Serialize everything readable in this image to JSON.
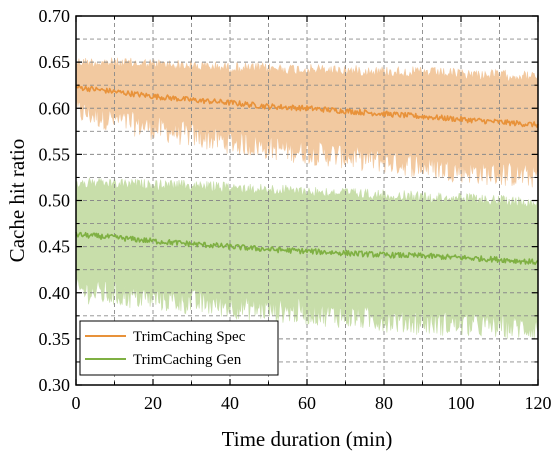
{
  "chart_data": {
    "type": "line",
    "title": "",
    "xlabel": "Time duration (min)",
    "ylabel": "Cache hit ratio",
    "xlim": [
      0,
      120
    ],
    "ylim": [
      0.3,
      0.7
    ],
    "x_ticks": [
      0,
      20,
      40,
      60,
      80,
      100,
      120
    ],
    "x_tick_labels": [
      "0",
      "20",
      "40",
      "60",
      "80",
      "100",
      "120"
    ],
    "y_ticks": [
      0.3,
      0.35,
      0.4,
      0.45,
      0.5,
      0.55,
      0.6,
      0.65,
      0.7
    ],
    "y_tick_labels": [
      "0.30",
      "0.35",
      "0.40",
      "0.45",
      "0.50",
      "0.55",
      "0.60",
      "0.65",
      "0.70"
    ],
    "grid": true,
    "legend_position": "bottom-left",
    "x": [
      0,
      10,
      20,
      30,
      40,
      50,
      60,
      70,
      80,
      90,
      100,
      110,
      120
    ],
    "series": [
      {
        "name": "TrimCaching Spec",
        "color": "#E8923A",
        "band_color": "#F2C9A0",
        "mean": [
          0.623,
          0.618,
          0.613,
          0.609,
          0.606,
          0.602,
          0.6,
          0.597,
          0.594,
          0.591,
          0.588,
          0.585,
          0.582
        ],
        "upper": [
          0.656,
          0.655,
          0.654,
          0.652,
          0.65,
          0.649,
          0.648,
          0.647,
          0.646,
          0.645,
          0.643,
          0.642,
          0.64
        ],
        "lower": [
          0.597,
          0.588,
          0.579,
          0.571,
          0.564,
          0.558,
          0.553,
          0.548,
          0.543,
          0.538,
          0.533,
          0.529,
          0.527
        ]
      },
      {
        "name": "TrimCaching Gen",
        "color": "#7FB043",
        "band_color": "#C8DEAA",
        "mean": [
          0.463,
          0.46,
          0.456,
          0.453,
          0.45,
          0.447,
          0.445,
          0.443,
          0.441,
          0.44,
          0.438,
          0.436,
          0.433
        ],
        "upper": [
          0.525,
          0.524,
          0.523,
          0.522,
          0.52,
          0.518,
          0.516,
          0.514,
          0.512,
          0.51,
          0.508,
          0.506,
          0.504
        ],
        "lower": [
          0.403,
          0.398,
          0.394,
          0.39,
          0.386,
          0.382,
          0.379,
          0.375,
          0.371,
          0.368,
          0.366,
          0.364,
          0.362
        ]
      }
    ]
  }
}
